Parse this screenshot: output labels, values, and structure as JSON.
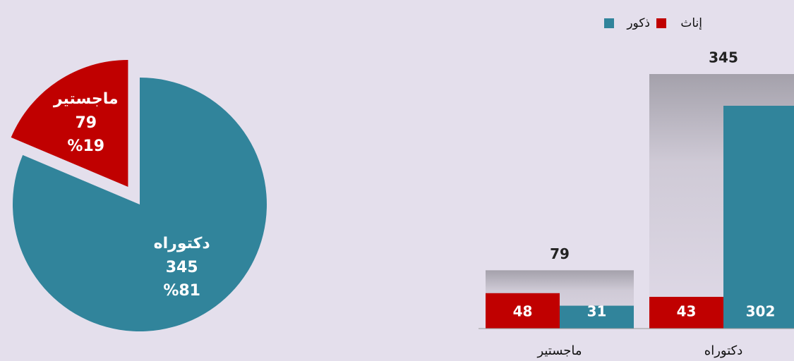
{
  "chart_data": [
    {
      "type": "pie",
      "categories": [
        "دكتوراه",
        "ماجستير"
      ],
      "values": [
        345,
        79
      ],
      "percentages": [
        {
          "value": 81,
          "label": "%81"
        },
        {
          "value": 19,
          "label": "%19"
        }
      ],
      "colors": [
        "#31849b",
        "#c00000"
      ]
    },
    {
      "type": "bar",
      "categories": [
        "ماجستير",
        "دكتوراه"
      ],
      "series": [
        {
          "name": "إناث",
          "color": "#c00000",
          "values": [
            48,
            43
          ]
        },
        {
          "name": "ذكور",
          "color": "#31849b",
          "values": [
            31,
            302
          ]
        }
      ],
      "totals": [
        79,
        345
      ],
      "ylim": [
        0,
        345
      ]
    }
  ]
}
